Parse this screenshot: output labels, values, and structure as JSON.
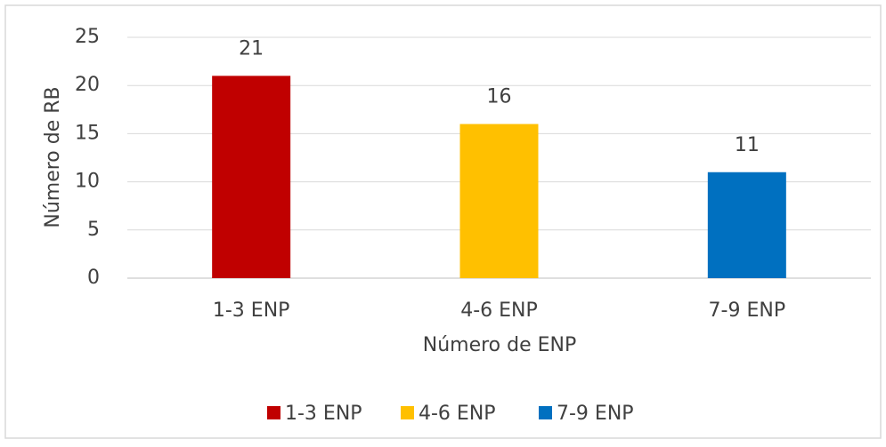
{
  "chart_data": {
    "type": "bar",
    "categories": [
      "1-3 ENP",
      "4-6 ENP",
      "7-9 ENP"
    ],
    "values": [
      21,
      16,
      11
    ],
    "colors": [
      "#c00000",
      "#ffc000",
      "#0070c0"
    ],
    "xlabel": "Número de ENP",
    "ylabel": "Número de RB",
    "ylim": [
      0,
      25
    ],
    "yticks": [
      0,
      5,
      10,
      15,
      20,
      25
    ],
    "grid": true,
    "legend": "bottom"
  }
}
